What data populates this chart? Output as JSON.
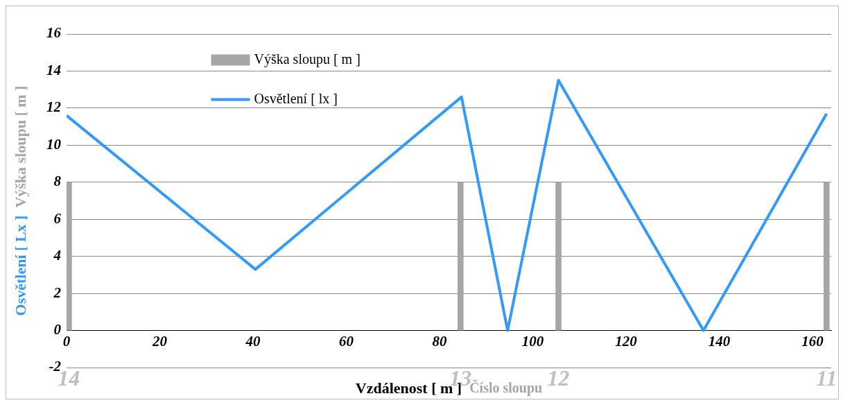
{
  "chart_data": {
    "type": "line",
    "xlabel": "Vzdálenost [ m ]",
    "ylabel": "Osvětlení [ Lx ]",
    "annotations": [
      "Výška sloupu [ m ]",
      "Číslo sloupu",
      "14",
      "13",
      "12",
      "11"
    ],
    "xlim": [
      0,
      164
    ],
    "xticks": [
      0,
      20,
      40,
      60,
      80,
      100,
      120,
      140,
      160
    ],
    "ylim": [
      -2,
      16
    ],
    "yticks": [
      -2,
      0,
      2,
      4,
      6,
      8,
      10,
      12,
      14,
      16
    ],
    "grid": "y",
    "legend": "top left",
    "series": [
      {
        "name": "Výška sloupu [ m ]",
        "type": "bar",
        "color": "#a6a6a6",
        "x": [
          0.5,
          84.5,
          105.5,
          163
        ],
        "values": [
          8,
          8,
          8,
          8
        ]
      },
      {
        "name": "Osvětlení [ lx ]",
        "color": "#3399ff",
        "marker": "none",
        "x": [
          0,
          40.5,
          84.7,
          94.6,
          105.5,
          136.6,
          163
        ],
        "values": [
          11.6,
          3.3,
          12.6,
          0,
          13.5,
          0,
          11.7
        ]
      }
    ]
  }
}
